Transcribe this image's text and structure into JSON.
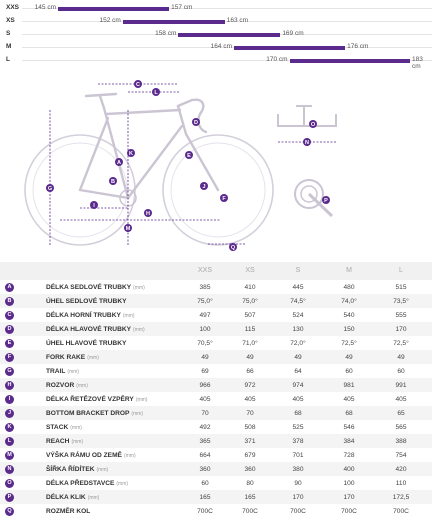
{
  "size_ranges": [
    {
      "label": "XXS",
      "from": "145 cm",
      "to": "157 cm",
      "from_cm": 145,
      "to_cm": 157
    },
    {
      "label": "XS",
      "from": "152 cm",
      "to": "163 cm",
      "from_cm": 152,
      "to_cm": 163
    },
    {
      "label": "S",
      "from": "158 cm",
      "to": "169 cm",
      "from_cm": 158,
      "to_cm": 169
    },
    {
      "label": "M",
      "from": "164 cm",
      "to": "176 cm",
      "from_cm": 164,
      "to_cm": 176
    },
    {
      "label": "L",
      "from": "170 cm",
      "to": "183 cm",
      "from_cm": 170,
      "to_cm": 183
    }
  ],
  "diagram": {
    "markers": [
      "A",
      "B",
      "C",
      "D",
      "E",
      "F",
      "G",
      "H",
      "I",
      "J",
      "K",
      "L",
      "M",
      "N",
      "O",
      "P",
      "Q"
    ],
    "colors": {
      "accent": "#5a2a8c",
      "frame": "#cfcad6",
      "wheel": "#d9d4e0"
    }
  },
  "table": {
    "headers": [
      "XXS",
      "XS",
      "S",
      "M",
      "L"
    ],
    "unit": "(mm)",
    "rows": [
      {
        "key": "A",
        "name": "DÉLKA SEDLOVÉ TRUBKY",
        "unit": "(mm)",
        "values": [
          "385",
          "410",
          "445",
          "480",
          "515"
        ]
      },
      {
        "key": "B",
        "name": "ÚHEL SEDLOVÉ TRUBKY",
        "unit": "",
        "values": [
          "75,0°",
          "75,0°",
          "74,5°",
          "74,0°",
          "73,5°"
        ]
      },
      {
        "key": "C",
        "name": "DÉLKA HORNÍ TRUBKY",
        "unit": "(mm)",
        "values": [
          "497",
          "507",
          "524",
          "540",
          "555"
        ]
      },
      {
        "key": "D",
        "name": "DÉLKA HLAVOVÉ TRUBKY",
        "unit": "(mm)",
        "values": [
          "100",
          "115",
          "130",
          "150",
          "170"
        ]
      },
      {
        "key": "E",
        "name": "ÚHEL HLAVOVÉ TRUBKY",
        "unit": "",
        "values": [
          "70,5°",
          "71,0°",
          "72,0°",
          "72,5°",
          "72,5°"
        ]
      },
      {
        "key": "F",
        "name": "FORK RAKE",
        "unit": "(mm)",
        "values": [
          "49",
          "49",
          "49",
          "49",
          "49"
        ]
      },
      {
        "key": "G",
        "name": "TRAIL",
        "unit": "(mm)",
        "values": [
          "69",
          "66",
          "64",
          "60",
          "60"
        ]
      },
      {
        "key": "H",
        "name": "ROZVOR",
        "unit": "(mm)",
        "values": [
          "966",
          "972",
          "974",
          "981",
          "991"
        ]
      },
      {
        "key": "I",
        "name": "DÉLKA ŘETĚZOVÉ VZPĚRY",
        "unit": "(mm)",
        "values": [
          "405",
          "405",
          "405",
          "405",
          "405"
        ]
      },
      {
        "key": "J",
        "name": "BOTTOM BRACKET DROP",
        "unit": "(mm)",
        "values": [
          "70",
          "70",
          "68",
          "68",
          "65"
        ]
      },
      {
        "key": "K",
        "name": "STACK",
        "unit": "(mm)",
        "values": [
          "492",
          "508",
          "525",
          "546",
          "565"
        ]
      },
      {
        "key": "L",
        "name": "REACH",
        "unit": "(mm)",
        "values": [
          "365",
          "371",
          "378",
          "384",
          "388"
        ]
      },
      {
        "key": "M",
        "name": "VÝŠKA RÁMU OD ZEMĚ",
        "unit": "(mm)",
        "values": [
          "664",
          "679",
          "701",
          "728",
          "754"
        ]
      },
      {
        "key": "N",
        "name": "ŠÍŘKA ŘÍDÍTEK",
        "unit": "(mm)",
        "values": [
          "360",
          "360",
          "380",
          "400",
          "420"
        ]
      },
      {
        "key": "O",
        "name": "DÉLKA PŘEDSTAVCE",
        "unit": "(mm)",
        "values": [
          "60",
          "80",
          "90",
          "100",
          "110"
        ]
      },
      {
        "key": "P",
        "name": "DÉLKA KLIK",
        "unit": "(mm)",
        "values": [
          "165",
          "165",
          "170",
          "170",
          "172,5"
        ]
      },
      {
        "key": "Q",
        "name": "ROZMĚR KOL",
        "unit": "",
        "values": [
          "700C",
          "700C",
          "700C",
          "700C",
          "700C"
        ]
      }
    ]
  }
}
